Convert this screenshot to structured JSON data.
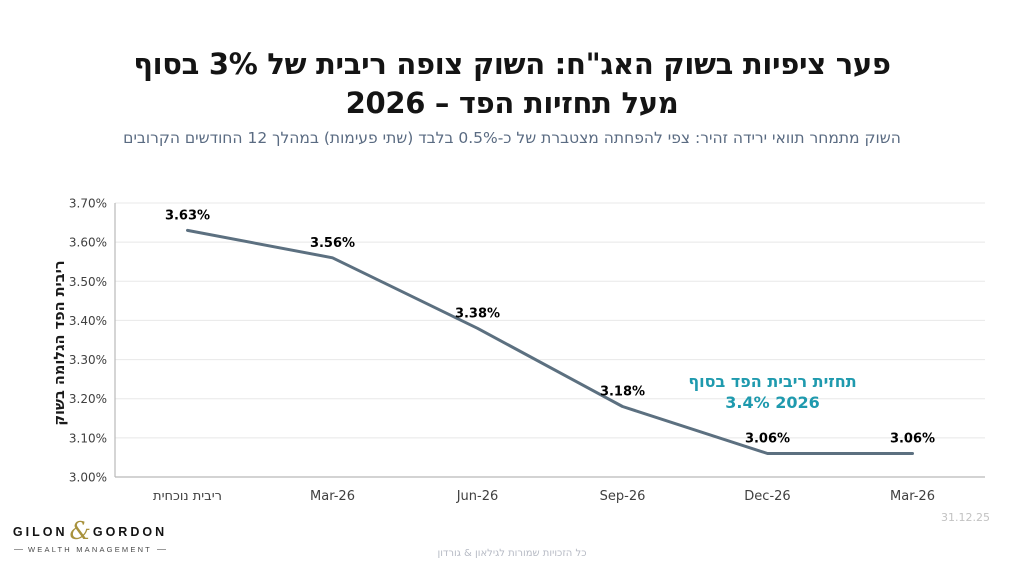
{
  "slide": {
    "title_line1": "פער ציפיות בשוק האג\"ח: השוק צופה ריבית של 3% בסוף",
    "title_line2": "2026 – מעל תחזיות הפד",
    "subtitle": "השוק מתמחר תוואי ירידה זהיר: צפי להפחתה מצטברת של כ-0.5% בלבד (שתי פעימות) במהלך 12 החודשים הקרובים",
    "rights": "כל הזכויות שמורות לגילאון & גורדון",
    "date": "31.12.25"
  },
  "logo": {
    "name_left": "GILON",
    "ampersand": "&",
    "name_right": "GORDON",
    "tagline": "WEALTH MANAGEMENT"
  },
  "chart_data": {
    "type": "line",
    "categories": [
      "ריבית נוכחית",
      "Mar-26",
      "Jun-26",
      "Sep-26",
      "Dec-26",
      "Mar-26"
    ],
    "values": [
      3.63,
      3.56,
      3.38,
      3.18,
      3.06,
      3.06
    ],
    "data_labels": [
      "3.63%",
      "3.56%",
      "3.38%",
      "3.18%",
      "3.06%",
      "3.06%"
    ],
    "title": "",
    "xlabel": "",
    "ylabel": "ריבית הפד הגלומה בשוק",
    "ylim": [
      3.0,
      3.7
    ],
    "yticks": [
      3.0,
      3.1,
      3.2,
      3.3,
      3.4,
      3.5,
      3.6,
      3.7
    ],
    "ytick_labels": [
      "3.00%",
      "3.10%",
      "3.20%",
      "3.30%",
      "3.40%",
      "3.50%",
      "3.60%",
      "3.70%"
    ],
    "grid": true,
    "legend": "none",
    "line_color": "#5C7080",
    "annotation": {
      "line1": "תחזית ריבית הפד בסוף",
      "line2": "3.4% 2026",
      "color": "#1F9AAE"
    }
  },
  "colors": {
    "title_text": "#141414",
    "subtitle_text": "#5A6B82",
    "annotation_teal": "#1F9AAE",
    "chart_line": "#5C7080",
    "gridline": "#E8E8E8",
    "axis_line": "#B9B9B9",
    "tick_text": "#404040",
    "logo_gold": "#A8923D",
    "footer_gray": "#B6BAC4"
  }
}
